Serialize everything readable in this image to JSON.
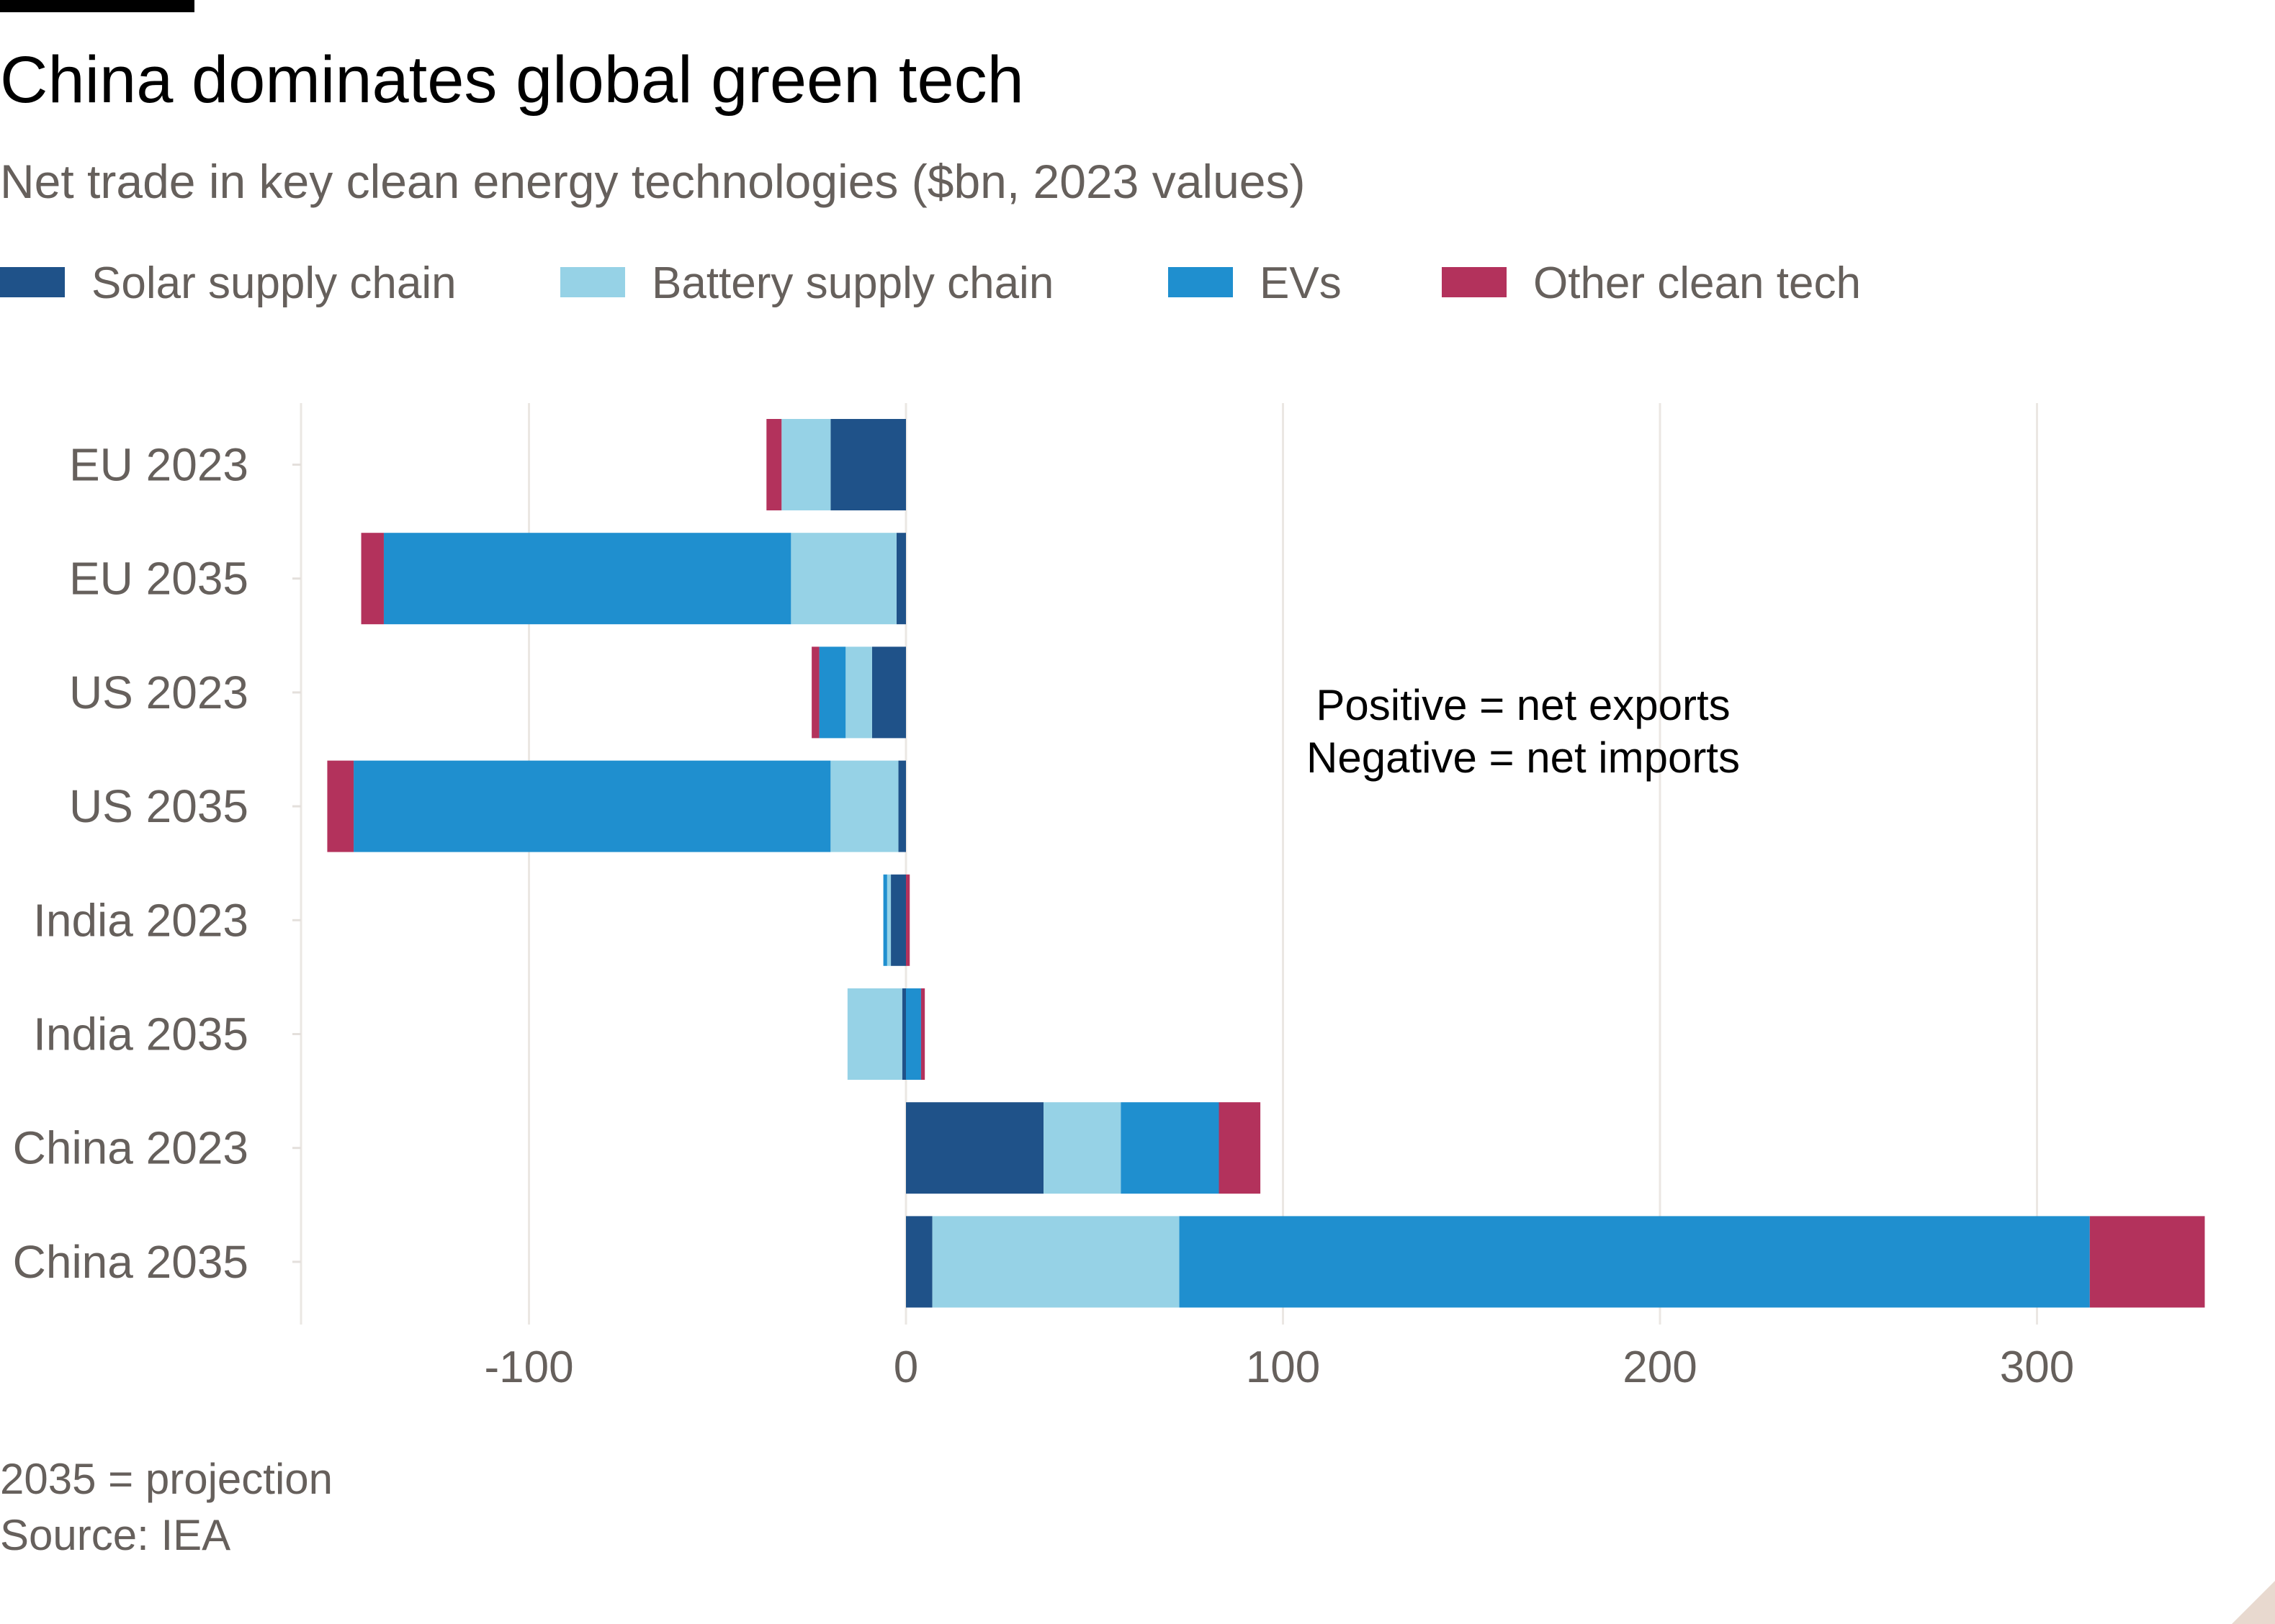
{
  "chart_data": {
    "type": "bar",
    "orientation": "horizontal",
    "stacked": true,
    "title": "China dominates global green tech",
    "subtitle": "Net trade in key clean energy technologies ($bn, 2023 values)",
    "categories": [
      "EU 2023",
      "EU 2035",
      "US 2023",
      "US 2035",
      "India 2023",
      "India 2035",
      "China 2023",
      "China 2035"
    ],
    "series": [
      {
        "name": "Solar supply chain",
        "color": "#1f5289",
        "values": [
          -20,
          -2.5,
          -9,
          -2,
          -4,
          -1,
          36.5,
          7
        ]
      },
      {
        "name": "Battery supply chain",
        "color": "#96d2e6",
        "values": [
          -13,
          -28,
          -7,
          -18,
          -1,
          -14.5,
          20.5,
          65.5
        ]
      },
      {
        "name": "EVs",
        "color": "#1f8fcf",
        "values": [
          0,
          -108,
          -7,
          -126.5,
          -1,
          4,
          26,
          241.5
        ]
      },
      {
        "name": "Other clean tech",
        "color": "#b3325c",
        "values": [
          -4,
          -6,
          -2,
          -7,
          1,
          1,
          11,
          30.5
        ]
      }
    ],
    "xlim": [
      -160,
      345
    ],
    "xticks": [
      "-100",
      "0",
      "100",
      "200",
      "300"
    ],
    "annotation": [
      "Positive = net exports",
      "Negative = net imports"
    ],
    "legend": "top-left",
    "grid": true
  },
  "notes": {
    "projection": "2035 = projection",
    "source": "Source: IEA"
  }
}
